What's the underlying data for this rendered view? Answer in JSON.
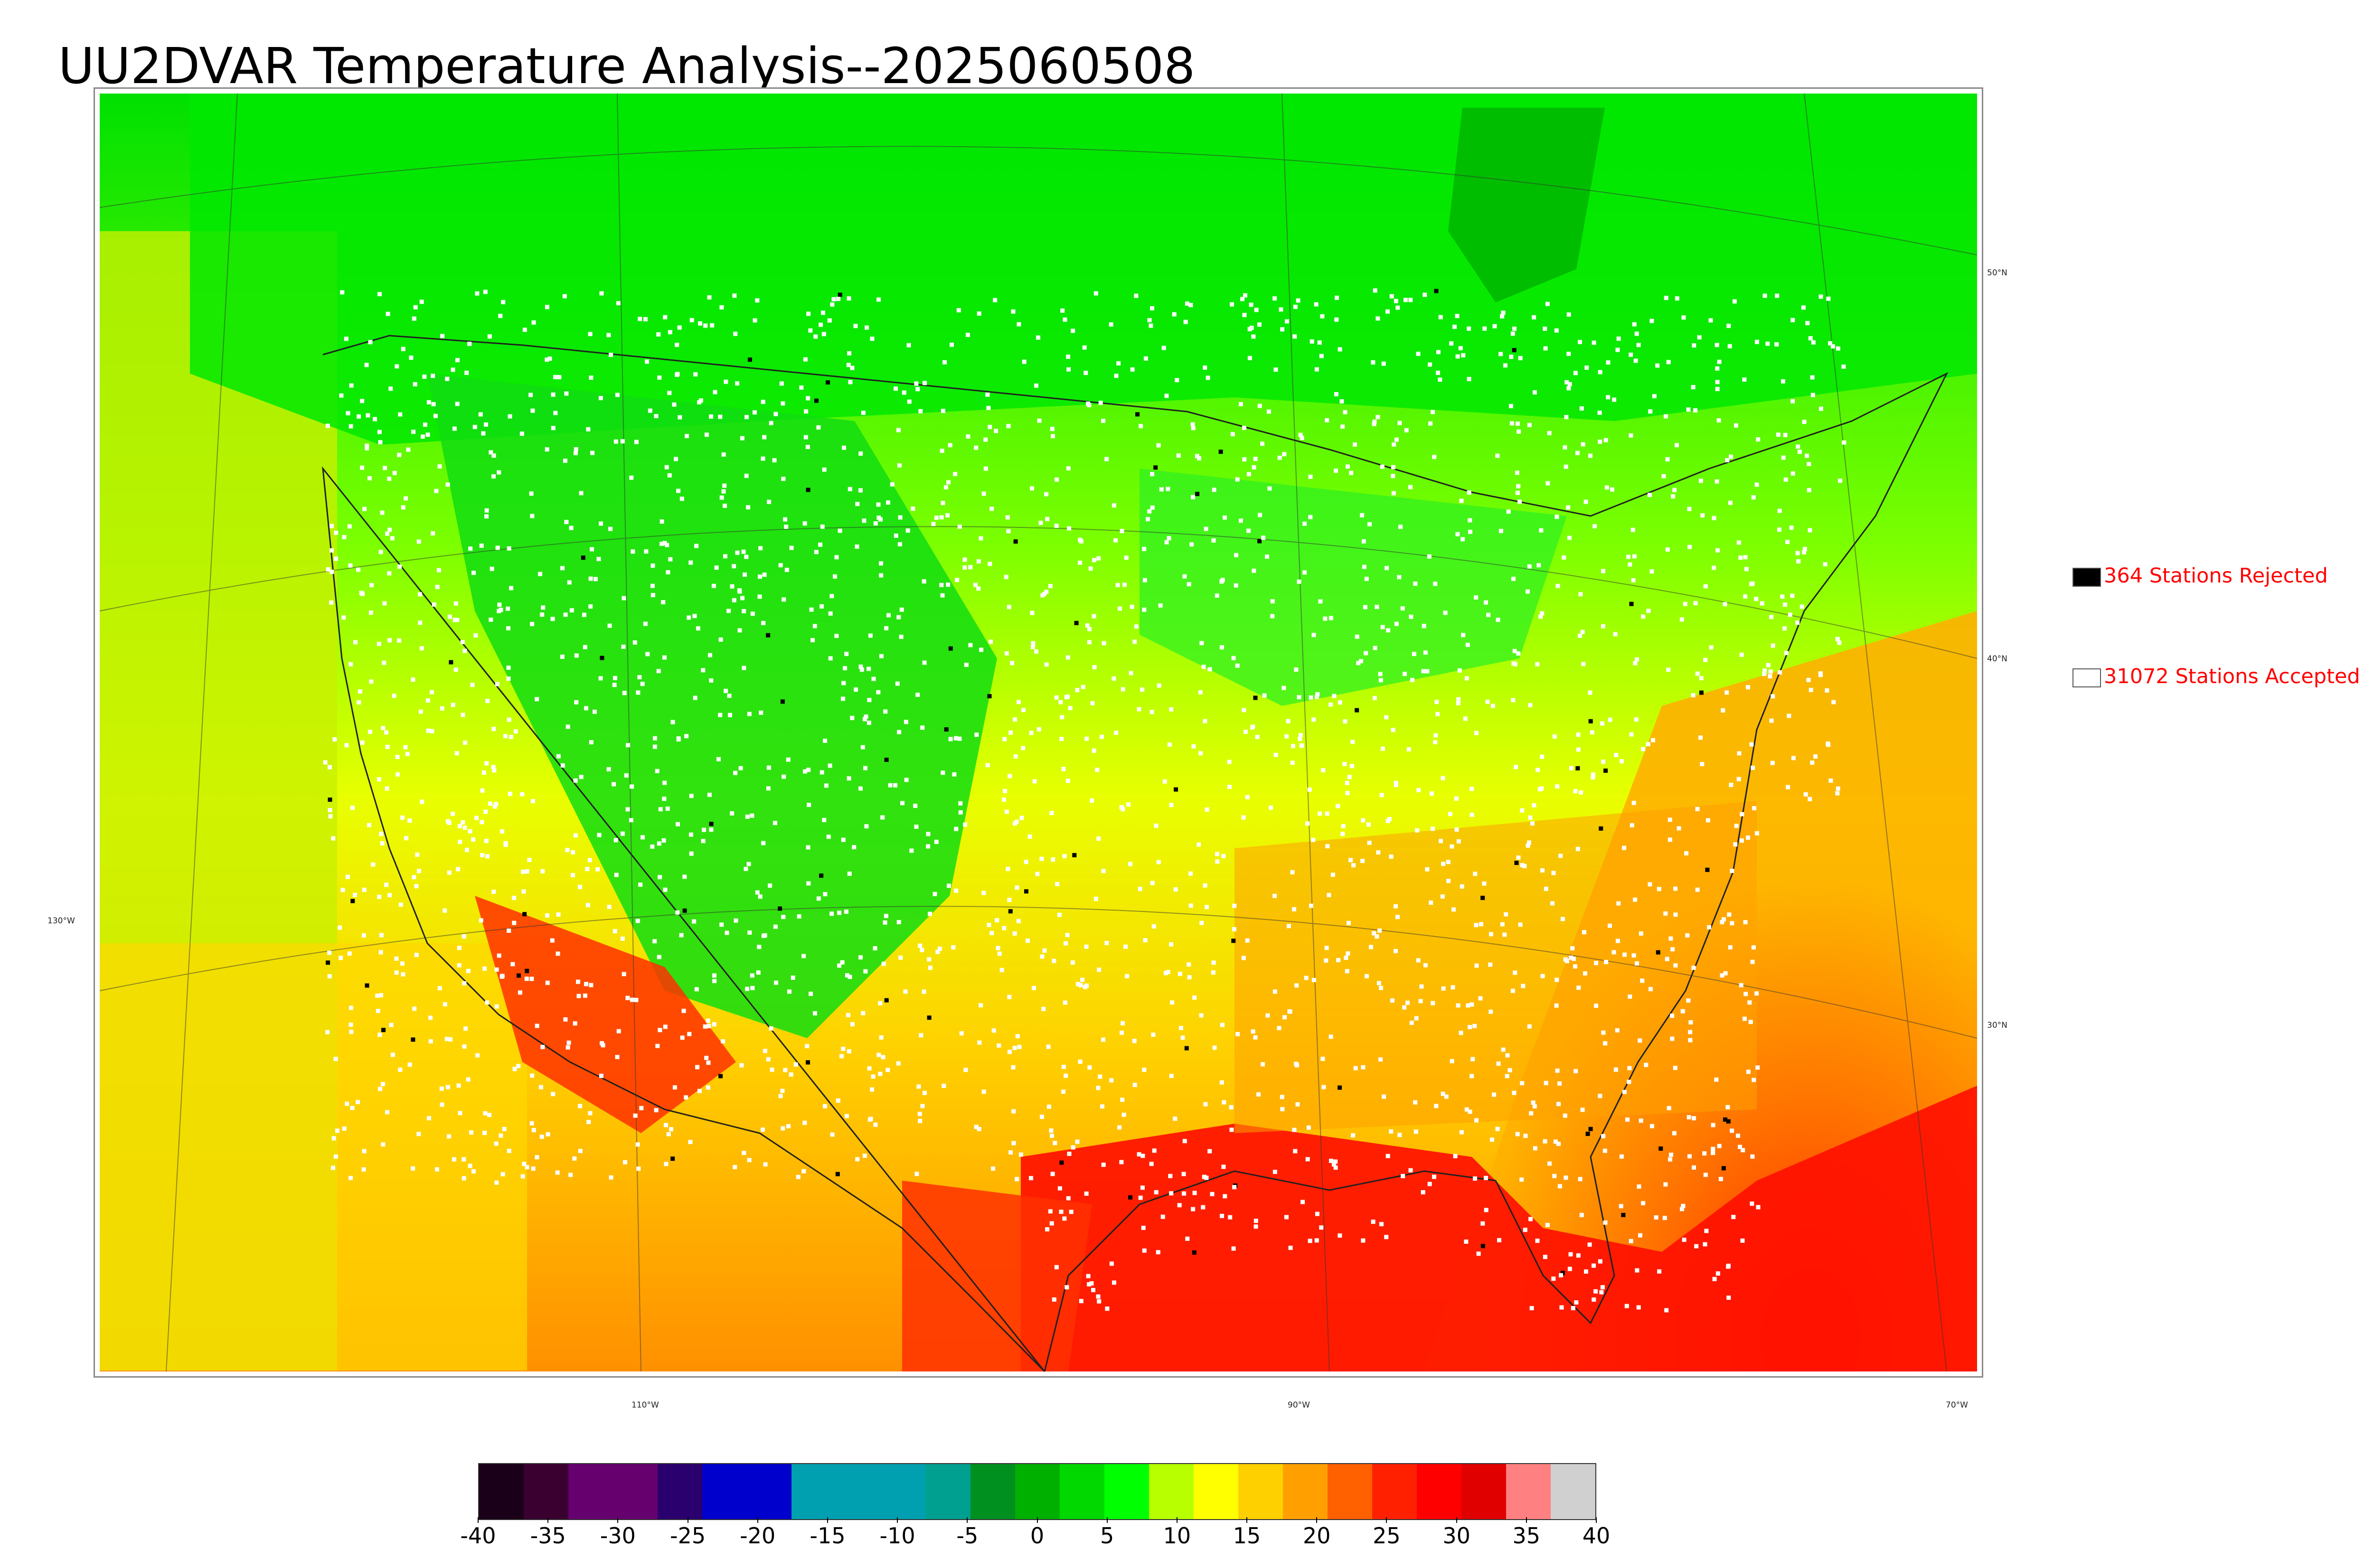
{
  "title": "UU2DVAR Temperature Analysis--2025060508",
  "legend": {
    "rejected": {
      "label": "364 Stations Rejected",
      "color": "#000000"
    },
    "accepted": {
      "label": "31072 Stations Accepted",
      "color": "#ffffff"
    }
  },
  "map": {
    "latitude_labels": [
      "50°N",
      "40°N",
      "30°N"
    ],
    "longitude_labels": [
      "130°W",
      "110°W",
      "90°W",
      "70°W"
    ]
  },
  "colorbar": {
    "ticks": [
      "-40",
      "-35",
      "-30",
      "-25",
      "-20",
      "-15",
      "-10",
      "-5",
      "0",
      "5",
      "10",
      "15",
      "20",
      "25",
      "30",
      "35",
      "40"
    ],
    "colors": [
      "#1a0018",
      "#3a0030",
      "#66006e",
      "#66006e",
      "#2a006e",
      "#0000cc",
      "#0000cc",
      "#00a0b0",
      "#00a0b0",
      "#00a0b0",
      "#00a090",
      "#009020",
      "#00b000",
      "#00d800",
      "#00ff00",
      "#b8ff00",
      "#ffff00",
      "#ffd000",
      "#ffa000",
      "#ff6000",
      "#ff2000",
      "#ff0000",
      "#e00000",
      "#ff8080",
      "#d0d0d0"
    ]
  }
}
